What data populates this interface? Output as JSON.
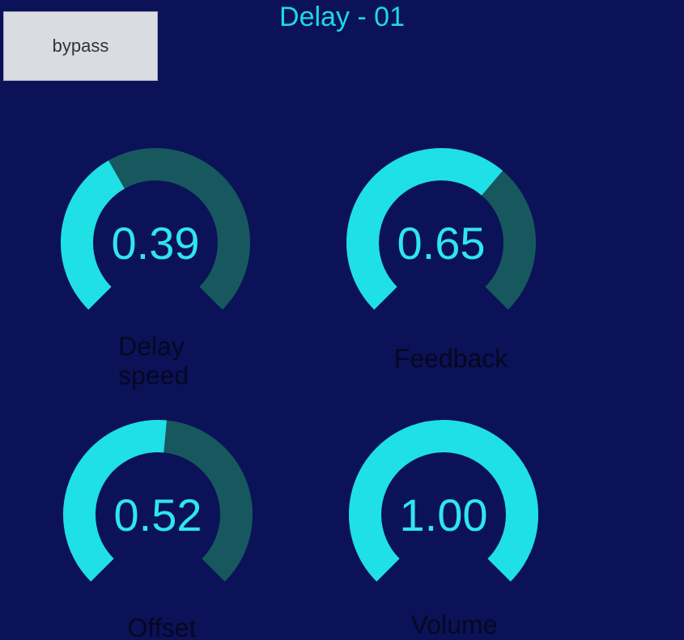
{
  "header": {
    "title": "Delay - 01",
    "button": "bypass"
  },
  "knobs": [
    {
      "label": "Delay speed",
      "value": 0.39,
      "value_label": "0.39"
    },
    {
      "label": "Feedback",
      "value": 0.65,
      "value_label": "0.65"
    },
    {
      "label": "Offset",
      "value": 0.52,
      "value_label": "0.52"
    },
    {
      "label": "Volume",
      "value": 1.0,
      "value_label": "1.00"
    }
  ]
}
